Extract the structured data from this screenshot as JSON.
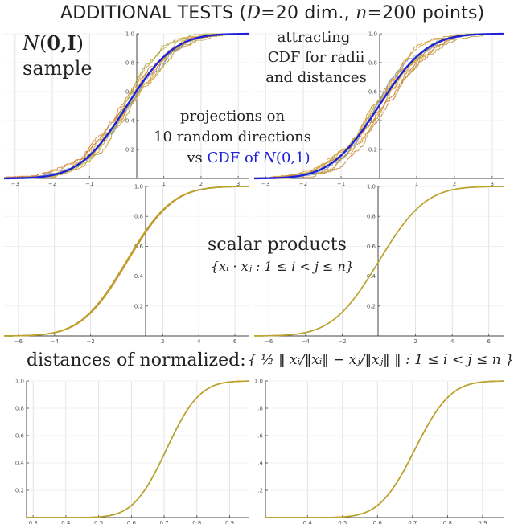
{
  "header": {
    "prefix": "ADDITIONAL TESTS (",
    "d_var": "D",
    "d_rest": "=20 dim., ",
    "n_var": "n",
    "n_rest": "=200 points)"
  },
  "annotations": {
    "sample_n": "N",
    "sample_paren_open": "(",
    "sample_bold": "0,I",
    "sample_paren_close": ")",
    "sample_word": "sample",
    "attracting_l1": "attracting",
    "attracting_l2": "CDF for radii",
    "attracting_l3": "and distances",
    "projections_l1": "projections on",
    "projections_l2": "10 random directions",
    "projections_vs": "vs ",
    "projections_cdf": "CDF of ",
    "projections_n": "N",
    "projections_args": "(0,1)",
    "scalar_title": "scalar products",
    "scalar_set": "{xᵢ · xⱼ : 1 ≤ i < j ≤ n}",
    "distances_title": "distances of normalized:",
    "distances_formula": "{ ½ ‖ xᵢ/‖xᵢ‖ − xⱼ/‖xⱼ‖ ‖ : 1 ≤ i < j ≤ n }"
  },
  "colors": {
    "blue": "#1e22d8",
    "orange": "#e0902a",
    "yellow_green": "#b8a32c",
    "grid": "#d8d8d8",
    "axis": "#444444"
  },
  "chart_data": [
    {
      "id": "top-left",
      "type": "line",
      "description_series": [
        "projections",
        "CDF of N(0,1)"
      ],
      "xlim": [
        -3.3,
        3.3
      ],
      "ylim": [
        0,
        1.0
      ],
      "xticks": [
        -3,
        -2,
        -1,
        1,
        2,
        3
      ],
      "yticks": [
        0.2,
        0.4,
        0.6,
        0.8,
        1.0
      ],
      "xtick_labels": [
        "−3",
        "−2",
        "−1",
        "1",
        "2",
        "3"
      ],
      "ytick_labels": [
        "0.2",
        "0.4",
        "0.6",
        "0.8",
        "1.0"
      ],
      "reference": {
        "dist": "normal",
        "mu": 0,
        "sigma": 1,
        "color": "#1e22d8"
      },
      "empirical": {
        "count": 10,
        "n": 200,
        "kind": "step",
        "spread": 0.25
      }
    },
    {
      "id": "top-right",
      "type": "line",
      "xlim": [
        -3.3,
        3.3
      ],
      "ylim": [
        0,
        1.0
      ],
      "xticks": [
        -3,
        -2,
        -1,
        1,
        2,
        3
      ],
      "yticks": [
        0.2,
        0.4,
        0.6,
        0.8,
        1.0
      ],
      "xtick_labels": [
        "−3",
        "−2",
        "−1",
        "1",
        "2",
        "3"
      ],
      "ytick_labels": [
        "0.2",
        "0.4",
        "0.6",
        "0.8",
        "1.0"
      ],
      "reference": {
        "dist": "normal",
        "mu": 0,
        "sigma": 1,
        "color": "#1e22d8"
      },
      "empirical": {
        "count": 10,
        "n": 200,
        "kind": "step",
        "spread": 0.22
      }
    },
    {
      "id": "middle-left",
      "type": "line",
      "xlim": [
        -6.8,
        6.8
      ],
      "ylim": [
        0,
        1.0
      ],
      "xticks": [
        -6,
        -4,
        -2,
        2,
        4,
        6
      ],
      "yticks": [
        0.2,
        0.4,
        0.6,
        0.8,
        1.0
      ],
      "xtick_labels": [
        "−6",
        "−4",
        "−2",
        "2",
        "4",
        "6"
      ],
      "ytick_labels": [
        "0.2",
        "0.4",
        "0.6",
        "0.8",
        "1.0"
      ],
      "reference": {
        "dist": "normal",
        "mu": 0,
        "sigma": 2.0,
        "color": "#b8a32c"
      },
      "empirical": {
        "count": 4,
        "n": 2000,
        "kind": "smooth",
        "spread": 0.06
      }
    },
    {
      "id": "middle-right",
      "type": "line",
      "xlim": [
        -6.8,
        6.8
      ],
      "ylim": [
        0,
        1.0
      ],
      "xticks": [
        -6,
        -4,
        -2,
        2,
        4,
        6
      ],
      "yticks": [
        0.2,
        0.4,
        0.6,
        0.8,
        1.0
      ],
      "xtick_labels": [
        "−6",
        "−4",
        "−2",
        "2",
        "4",
        "6"
      ],
      "ytick_labels": [
        "0.2",
        "0.4",
        "0.6",
        "0.8",
        "1.0"
      ],
      "reference": {
        "dist": "normal",
        "mu": 0,
        "sigma": 2.0,
        "color": "#b8a32c"
      },
      "empirical": {
        "count": 2,
        "n": 2000,
        "kind": "smooth",
        "spread": 0.02
      }
    },
    {
      "id": "bottom-left",
      "type": "line",
      "xlim": [
        0.28,
        0.96
      ],
      "ylim": [
        0,
        1.0
      ],
      "xticks": [
        0.3,
        0.4,
        0.5,
        0.6,
        0.7,
        0.8,
        0.9
      ],
      "yticks": [
        0.2,
        0.4,
        0.6,
        0.8,
        1.0
      ],
      "xtick_labels": [
        "0.3",
        "0.4",
        "0.5",
        "0.6",
        "0.7",
        "0.8",
        "0.9"
      ],
      "ytick_labels": [
        "0.2",
        "0.4",
        "0.6",
        "0.8",
        "1.0"
      ],
      "reference": {
        "dist": "normal",
        "mu": 0.7071,
        "sigma": 0.0795,
        "color": "#b8a32c"
      },
      "empirical": {
        "count": 3,
        "n": 2000,
        "kind": "smooth",
        "spread": 0.01
      }
    },
    {
      "id": "bottom-right",
      "type": "line",
      "xlim": [
        0.28,
        0.96
      ],
      "ylim": [
        0,
        1.0
      ],
      "xticks": [
        0.4,
        0.5,
        0.6,
        0.7,
        0.8,
        0.9
      ],
      "yticks": [
        0.2,
        0.4,
        0.6,
        0.8,
        1.0
      ],
      "xtick_labels": [
        "0.4",
        "0.5",
        "0.6",
        "0.7",
        "0.8",
        "0.9"
      ],
      "ytick_labels": [
        ".2",
        ".4",
        ".6",
        ".8",
        "1.0"
      ],
      "reference": {
        "dist": "normal",
        "mu": 0.7071,
        "sigma": 0.0795,
        "color": "#b8a32c"
      },
      "empirical": {
        "count": 3,
        "n": 2000,
        "kind": "smooth",
        "spread": 0.01
      }
    }
  ]
}
